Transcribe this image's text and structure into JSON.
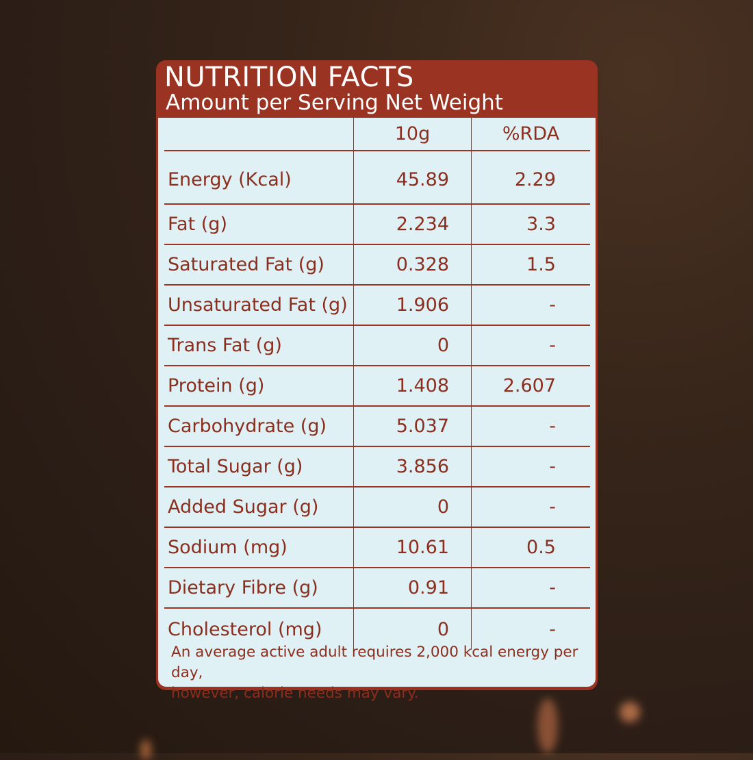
{
  "header": {
    "title": "NUTRITION FACTS",
    "subtitle": "Amount per Serving Net Weight"
  },
  "table": {
    "columns": [
      "",
      "10g",
      "%RDA"
    ],
    "rows": [
      {
        "name": "Energy (Kcal)",
        "amount": "45.89",
        "rda": "2.29"
      },
      {
        "name": "Fat (g)",
        "amount": "2.234",
        "rda": "3.3"
      },
      {
        "name": "Saturated Fat (g)",
        "amount": "0.328",
        "rda": "1.5"
      },
      {
        "name": "Unsaturated Fat (g)",
        "amount": "1.906",
        "rda": "-"
      },
      {
        "name": "Trans Fat (g)",
        "amount": "0",
        "rda": "-"
      },
      {
        "name": "Protein (g)",
        "amount": "1.408",
        "rda": "2.607"
      },
      {
        "name": "Carbohydrate (g)",
        "amount": "5.037",
        "rda": "-"
      },
      {
        "name": "Total Sugar (g)",
        "amount": "3.856",
        "rda": "-"
      },
      {
        "name": "Added Sugar (g)",
        "amount": "0",
        "rda": "-"
      },
      {
        "name": "Sodium (mg)",
        "amount": "10.61",
        "rda": "0.5"
      },
      {
        "name": "Dietary Fibre (g)",
        "amount": "0.91",
        "rda": "-"
      },
      {
        "name": "Cholesterol (mg)",
        "amount": "0",
        "rda": "-"
      }
    ]
  },
  "footnote": {
    "line1": "An average active adult requires 2,000 kcal energy per day,",
    "line2": "however, calorie needs may vary."
  },
  "colors": {
    "header": "#9a3322",
    "panel": "#e0f1f5",
    "text": "#8b2e1e"
  }
}
